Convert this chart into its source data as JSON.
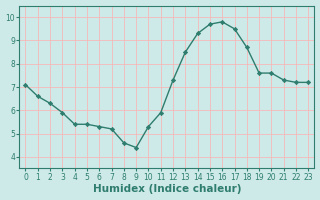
{
  "x": [
    0,
    1,
    2,
    3,
    4,
    5,
    6,
    7,
    8,
    9,
    10,
    11,
    12,
    13,
    14,
    15,
    16,
    17,
    18,
    19,
    20,
    21,
    22,
    23
  ],
  "y": [
    7.1,
    6.6,
    6.3,
    5.9,
    5.4,
    5.4,
    5.3,
    5.2,
    4.6,
    4.4,
    5.3,
    5.9,
    7.3,
    8.5,
    9.3,
    9.7,
    9.8,
    9.5,
    8.7,
    7.6,
    7.6,
    7.3,
    7.2,
    7.2
  ],
  "line_color": "#2e7d6e",
  "marker": "D",
  "markersize": 2.2,
  "linewidth": 1.0,
  "bg_color": "#ceeae8",
  "grid_color_major": "#f5b8b8",
  "grid_color_minor": "#f5b8b8",
  "xlabel": "Humidex (Indice chaleur)",
  "xlabel_fontsize": 7.5,
  "ylim": [
    3.5,
    10.5
  ],
  "xlim": [
    -0.5,
    23.5
  ],
  "yticks": [
    4,
    5,
    6,
    7,
    8,
    9,
    10
  ],
  "xticks": [
    0,
    1,
    2,
    3,
    4,
    5,
    6,
    7,
    8,
    9,
    10,
    11,
    12,
    13,
    14,
    15,
    16,
    17,
    18,
    19,
    20,
    21,
    22,
    23
  ],
  "tick_fontsize": 5.5,
  "spine_color": "#2e7d6e",
  "xlabel_color": "#2e7d6e"
}
